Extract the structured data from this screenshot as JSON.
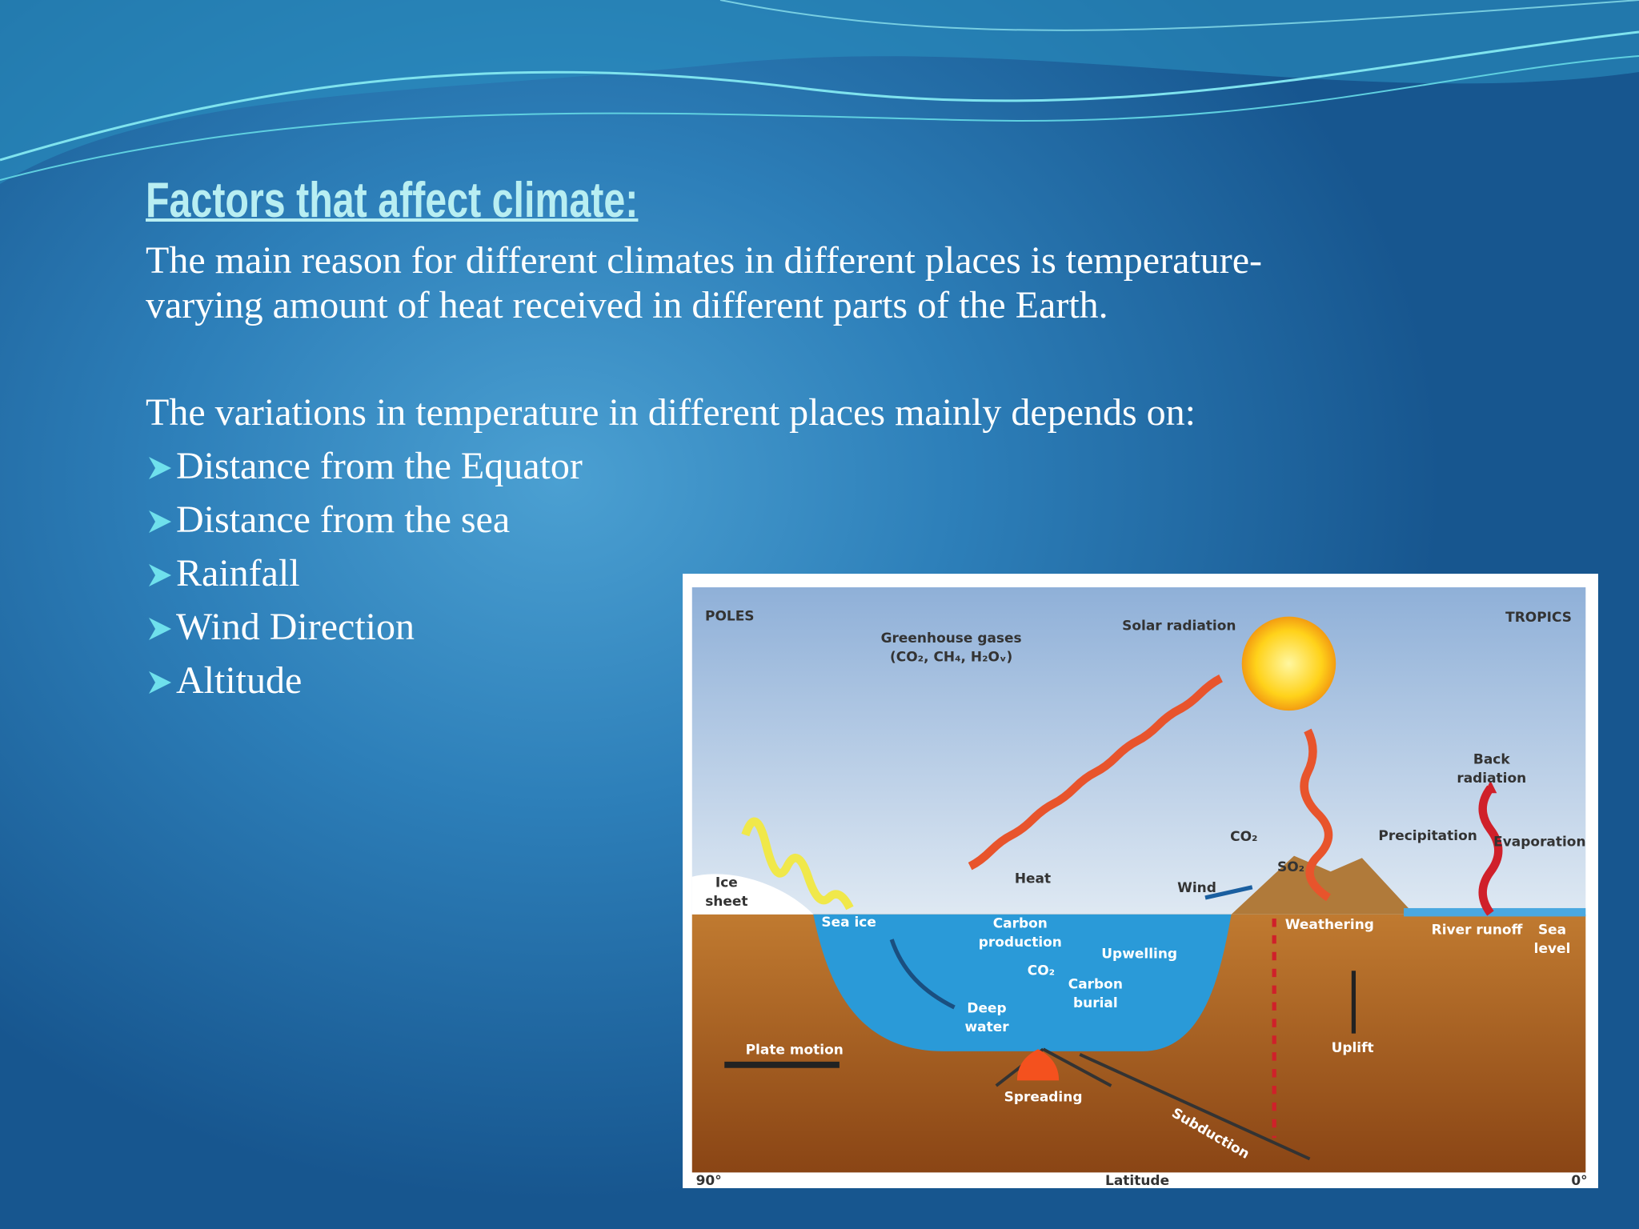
{
  "slide": {
    "title": "Factors that affect climate:",
    "paragraph": [
      "The main reason for different climates in different places is temperature-",
      "varying amount of heat received in different parts of the Earth."
    ],
    "intro": "The variations in temperature in different places mainly depends on:",
    "bullets": [
      "Distance from the Equator",
      "Distance from the sea",
      "Rainfall",
      "Wind Direction",
      "Altitude"
    ]
  },
  "diagram": {
    "labels": [
      {
        "lines": [
          "POLES"
        ]
      },
      {
        "lines": [
          "Greenhouse gases",
          "(CO₂, CH₄, H₂Oᵥ)"
        ]
      },
      {
        "lines": [
          "Solar radiation"
        ]
      },
      {
        "lines": [
          "TROPICS"
        ]
      },
      {
        "lines": [
          "Back",
          "radiation"
        ]
      },
      {
        "lines": [
          "Precipitation"
        ]
      },
      {
        "lines": [
          "Evaporation"
        ]
      },
      {
        "lines": [
          "CO₂"
        ]
      },
      {
        "lines": [
          "SO₂"
        ]
      },
      {
        "lines": [
          "Ice",
          "sheet"
        ]
      },
      {
        "lines": [
          "Heat"
        ]
      },
      {
        "lines": [
          "Wind"
        ]
      },
      {
        "lines": [
          "Sea ice"
        ]
      },
      {
        "lines": [
          "Carbon",
          "production"
        ]
      },
      {
        "lines": [
          "Weathering"
        ]
      },
      {
        "lines": [
          "River runoff"
        ]
      },
      {
        "lines": [
          "Sea",
          "level"
        ]
      },
      {
        "lines": [
          "Upwelling"
        ]
      },
      {
        "lines": [
          "CO₂"
        ]
      },
      {
        "lines": [
          "Carbon",
          "burial"
        ]
      },
      {
        "lines": [
          "Deep",
          "water"
        ]
      },
      {
        "lines": [
          "Plate motion"
        ]
      },
      {
        "lines": [
          "Uplift"
        ]
      },
      {
        "lines": [
          "Spreading"
        ]
      },
      {
        "lines": [
          "Subduction"
        ]
      },
      {
        "lines": [
          "90°"
        ]
      },
      {
        "lines": [
          "Latitude"
        ]
      },
      {
        "lines": [
          "0°"
        ]
      }
    ]
  }
}
